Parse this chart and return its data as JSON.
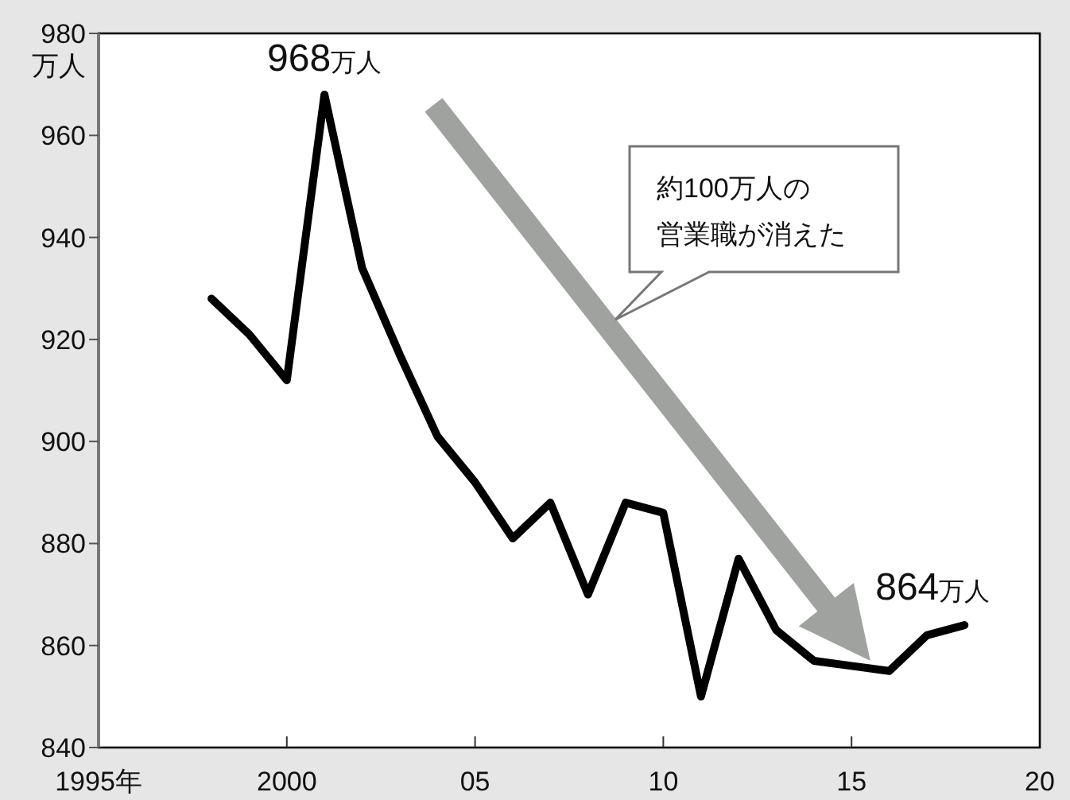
{
  "chart_data": {
    "type": "line",
    "ylabel": "万人",
    "x": [
      1998,
      1999,
      2000,
      2001,
      2002,
      2003,
      2004,
      2005,
      2006,
      2007,
      2008,
      2009,
      2010,
      2011,
      2012,
      2013,
      2014,
      2015,
      2016,
      2017,
      2018
    ],
    "series": [
      {
        "color": "#000000",
        "values": [
          928,
          921,
          912,
          968,
          934,
          917,
          901,
          892,
          881,
          888,
          870,
          888,
          886,
          850,
          877,
          863,
          857,
          856,
          855,
          862,
          864
        ]
      }
    ],
    "xlim": [
      1995,
      2020
    ],
    "xticks": [
      {
        "value": 1995,
        "label": "1995年"
      },
      2000,
      {
        "value": 2005,
        "label": "05"
      },
      {
        "value": 2010,
        "label": "10"
      },
      {
        "value": 2015,
        "label": "15"
      },
      {
        "value": 2020,
        "label": "20"
      }
    ],
    "ylim": [
      840,
      980
    ],
    "yticks": [
      840,
      860,
      880,
      900,
      920,
      940,
      960,
      980
    ],
    "grid": false,
    "marker": "none",
    "line_style": "solid",
    "annotations": [
      {
        "text": "968万人",
        "x": 2001,
        "y": 968
      },
      {
        "text": "864万人",
        "x": 2018,
        "y": 864
      },
      "約100万人の",
      "営業職が消えた"
    ]
  }
}
